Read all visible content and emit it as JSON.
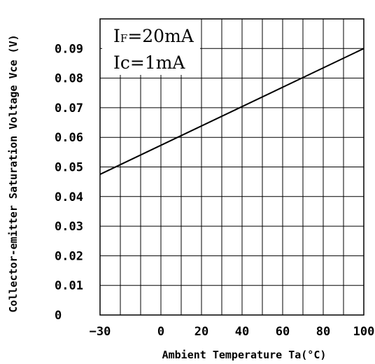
{
  "chart_data": {
    "type": "line",
    "title": "",
    "xlabel": "Ambient Temperature Ta(°C)",
    "ylabel": "Collector-emitter Saturation  Voltage Vce (V)",
    "xlim": [
      -30,
      100
    ],
    "ylim": [
      0,
      0.1
    ],
    "x_ticks": [
      -30,
      0,
      20,
      40,
      60,
      80,
      100
    ],
    "x_tick_labels": [
      "−30",
      "0",
      "20",
      "40",
      "60",
      "80",
      "100"
    ],
    "y_ticks": [
      0,
      0.01,
      0.02,
      0.03,
      0.04,
      0.05,
      0.06,
      0.07,
      0.08,
      0.09
    ],
    "y_tick_labels": [
      "0",
      "0.01",
      "0.02",
      "0.03",
      "0.04",
      "0.05",
      "0.06",
      "0.07",
      "0.08",
      "0.09"
    ],
    "grid": true,
    "series": [
      {
        "x": [
          -30,
          100
        ],
        "values": [
          0.0475,
          0.09
        ],
        "color": "#000000"
      }
    ],
    "annotations": {
      "if_main": "I",
      "if_sub": "F",
      "if_value": "=20mA",
      "ic_text": "Ic=1mA"
    }
  }
}
